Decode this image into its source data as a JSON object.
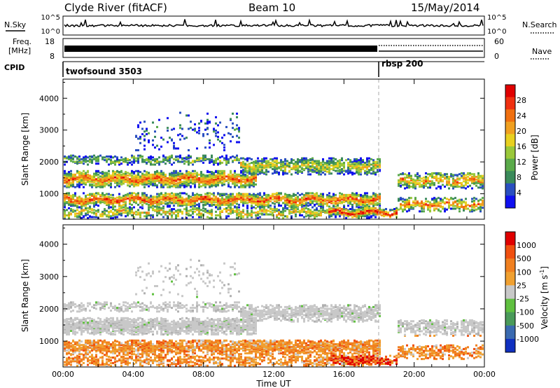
{
  "header": {
    "site": "Clyde River (fitACF)",
    "beam": "Beam 10",
    "date": "15/May/2014"
  },
  "top_panels": {
    "nsky_label": "N.Sky",
    "nsky_ticks": [
      "10^5",
      "10^0"
    ],
    "nsearch_label": "N.Search",
    "nsearch_ticks": [
      "10^5",
      "10^0"
    ],
    "freq_label": "Freq.",
    "freq_unit": "[MHz]",
    "freq_ticks": [
      "18",
      "8"
    ],
    "nave_label": "Nave",
    "nave_ticks": [
      "60",
      "0"
    ],
    "cpid_label": "CPID",
    "cpid_modes": [
      {
        "name": "twofsound 3503",
        "start_hour": 0
      },
      {
        "name": "rbsp 200",
        "start_hour": 18
      }
    ]
  },
  "chart_data": [
    {
      "type": "heatmap",
      "name": "power",
      "ylabel": "Slant Range [km]",
      "xlabel": "Time UT",
      "ylim": [
        200,
        4600
      ],
      "yticks": [
        "1000",
        "2000",
        "3000",
        "4000"
      ],
      "xticks": [
        "00:00",
        "04:00",
        "08:00",
        "12:00",
        "16:00",
        "20:00",
        "00:00"
      ],
      "colorbar": {
        "title": "Power",
        "unit": "[dB]",
        "ticks": [
          "4",
          "8",
          "12",
          "16",
          "20",
          "24",
          "28"
        ],
        "colors": [
          "#1010f0",
          "#2a4fc0",
          "#3a8a5a",
          "#5aaa4a",
          "#9ac83a",
          "#e8d020",
          "#f0a020",
          "#f07010",
          "#f03010",
          "#e00000"
        ]
      }
    },
    {
      "type": "heatmap",
      "name": "velocity",
      "ylabel": "Slant Range [km]",
      "xlabel": "Time UT",
      "ylim": [
        200,
        4600
      ],
      "yticks": [
        "1000",
        "2000",
        "3000",
        "4000"
      ],
      "xticks": [
        "00:00",
        "04:00",
        "08:00",
        "12:00",
        "16:00",
        "20:00",
        "00:00"
      ],
      "colorbar": {
        "title": "Velocity",
        "unit": "[m s",
        "unit_sup": "-1",
        "unit_close": "]",
        "ticks": [
          "1000",
          "500",
          "100",
          "25",
          "-25",
          "-100",
          "-500",
          "-1000"
        ],
        "colors": [
          "#1030c0",
          "#3a6ab0",
          "#4a9a5a",
          "#60c040",
          "#c8c8c8",
          "#f0a030",
          "#f08020",
          "#f05010",
          "#e00000"
        ]
      }
    }
  ],
  "xaxis_title": "Time UT"
}
